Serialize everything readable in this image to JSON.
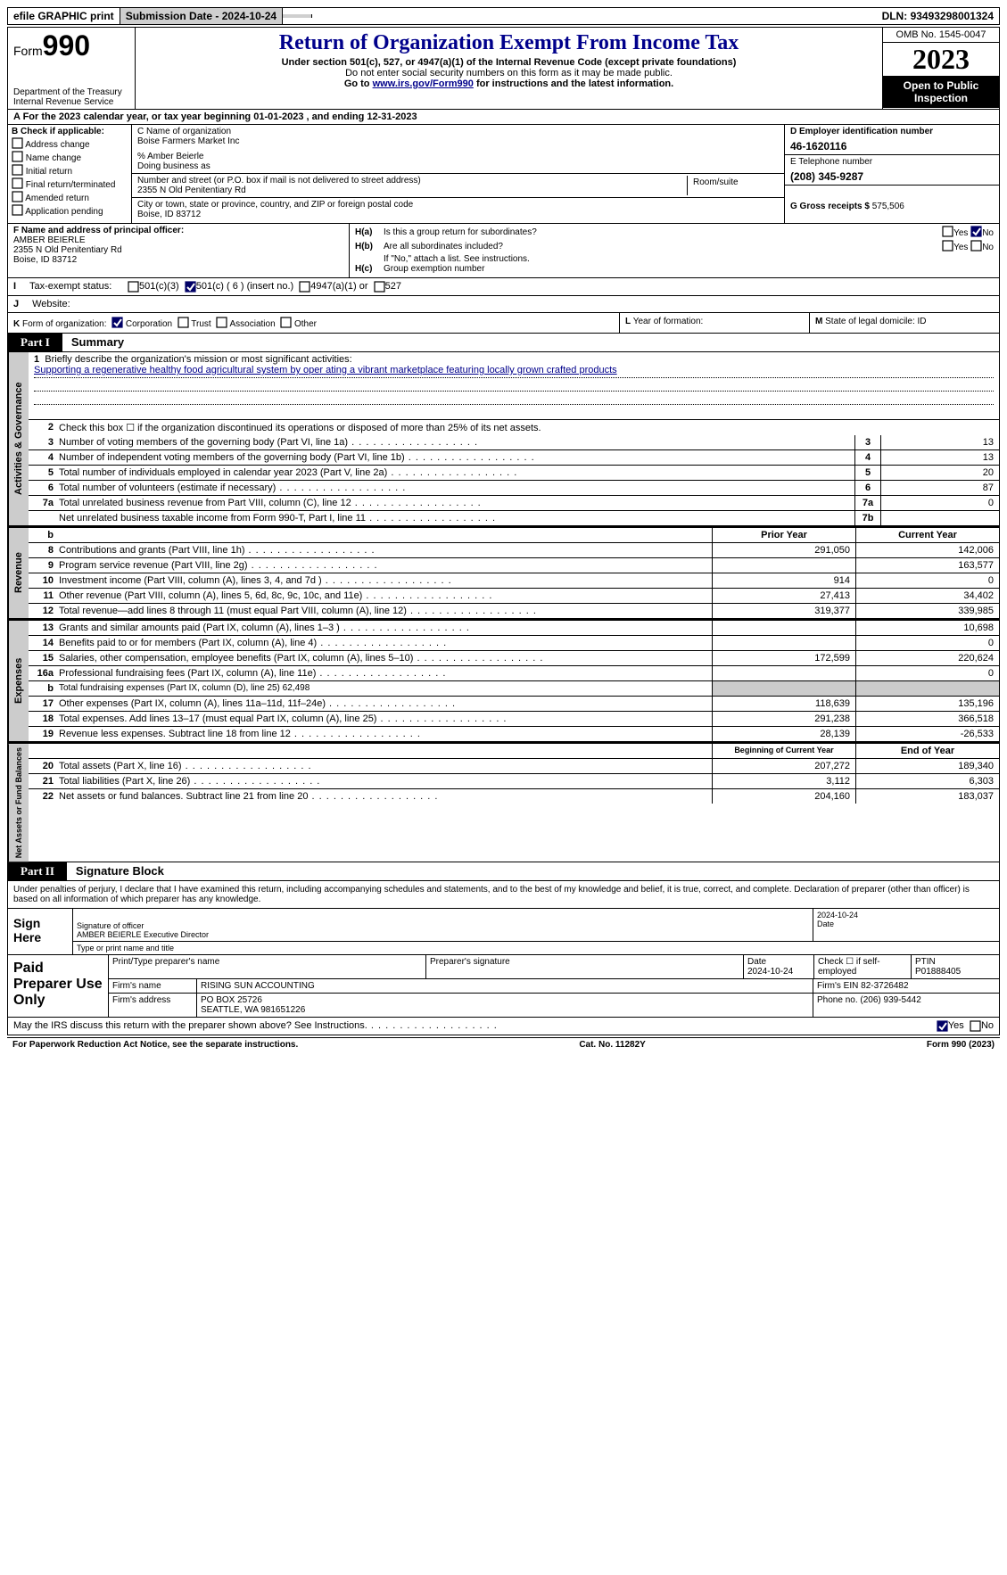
{
  "topbar": {
    "efile": "efile GRAPHIC print",
    "sub_label": "Submission Date - ",
    "sub_date": "2024-10-24",
    "dln_label": "DLN: ",
    "dln": "93493298001324"
  },
  "header": {
    "form_label": "Form",
    "form_no": "990",
    "dept": "Department of the Treasury Internal Revenue Service",
    "title": "Return of Organization Exempt From Income Tax",
    "subtitle": "Under section 501(c), 527, or 4947(a)(1) of the Internal Revenue Code (except private foundations)",
    "note1": "Do not enter social security numbers on this form as it may be made public.",
    "note2_pre": "Go to ",
    "note2_link": "www.irs.gov/Form990",
    "note2_post": " for instructions and the latest information.",
    "omb": "OMB No. 1545-0047",
    "year": "2023",
    "inspection": "Open to Public Inspection"
  },
  "row_a": {
    "text_pre": "A    For the 2023 calendar year, or tax year beginning ",
    "begin": "01-01-2023",
    "mid": "   , and ending ",
    "end": "12-31-2023"
  },
  "box_b": {
    "title": "B Check if applicable:",
    "items": [
      "Address change",
      "Name change",
      "Initial return",
      "Final return/terminated",
      "Amended return",
      "Application pending"
    ]
  },
  "box_c": {
    "name_label": "C Name of organization",
    "name": "Boise Farmers Market Inc",
    "care_of": "% Amber Beierle",
    "dba_label": "Doing business as",
    "dba": "",
    "street_label": "Number and street (or P.O. box if mail is not delivered to street address)",
    "street": "2355 N Old Penitentiary Rd",
    "room_label": "Room/suite",
    "room": "",
    "city_label": "City or town, state or province, country, and ZIP or foreign postal code",
    "city": "Boise, ID  83712"
  },
  "box_d": {
    "label": "D Employer identification number",
    "value": "46-1620116"
  },
  "box_e": {
    "label": "E Telephone number",
    "value": "(208) 345-9287"
  },
  "box_g": {
    "label": "G Gross receipts $ ",
    "value": "575,506"
  },
  "box_f": {
    "label": "F  Name and address of principal officer:",
    "name": "AMBER BEIERLE",
    "street": "2355 N Old Penitentiary Rd",
    "city": "Boise, ID  83712"
  },
  "box_h": {
    "a_label": "H(a)",
    "a_text": "Is this a group return for subordinates?",
    "b_label": "H(b)",
    "b_text": "Are all subordinates included?",
    "b_note": "If \"No,\" attach a list. See instructions.",
    "c_label": "H(c)",
    "c_text": "Group exemption number",
    "yes": "Yes",
    "no": "No"
  },
  "box_i": {
    "label": "I",
    "text": "Tax-exempt status:",
    "opts": [
      "501(c)(3)",
      "501(c) ( 6 ) (insert no.)",
      "4947(a)(1) or",
      "527"
    ]
  },
  "box_j": {
    "label": "J",
    "text": "Website:"
  },
  "box_k": {
    "label": "K",
    "text": "Form of organization:",
    "opts": [
      "Corporation",
      "Trust",
      "Association",
      "Other"
    ]
  },
  "box_l": {
    "label": "L",
    "text": "Year of formation:"
  },
  "box_m": {
    "label": "M",
    "text": "State of legal domicile: ",
    "value": "ID"
  },
  "part1": {
    "tab": "Part I",
    "title": "Summary"
  },
  "mission": {
    "num": "1",
    "label": "Briefly describe the organization's mission or most significant activities:",
    "text": "Supporting a regenerative healthy food agricultural system by oper ating a vibrant marketplace featuring locally grown crafted products"
  },
  "gov_section": {
    "vtab": "Activities & Governance",
    "rows": [
      {
        "num": "2",
        "desc": "Check this box ☐ if the organization discontinued its operations or disposed of more than 25% of its net assets."
      },
      {
        "num": "3",
        "desc": "Number of voting members of the governing body (Part VI, line 1a)",
        "box": "3",
        "val": "13"
      },
      {
        "num": "4",
        "desc": "Number of independent voting members of the governing body (Part VI, line 1b)",
        "box": "4",
        "val": "13"
      },
      {
        "num": "5",
        "desc": "Total number of individuals employed in calendar year 2023 (Part V, line 2a)",
        "box": "5",
        "val": "20"
      },
      {
        "num": "6",
        "desc": "Total number of volunteers (estimate if necessary)",
        "box": "6",
        "val": "87"
      },
      {
        "num": "7a",
        "desc": "Total unrelated business revenue from Part VIII, column (C), line 12",
        "box": "7a",
        "val": "0"
      },
      {
        "num": "",
        "desc": "Net unrelated business taxable income from Form 990-T, Part I, line 11",
        "box": "7b",
        "val": ""
      }
    ]
  },
  "rev_section": {
    "vtab": "Revenue",
    "header_b": "b",
    "col1": "Prior Year",
    "col2": "Current Year",
    "rows": [
      {
        "num": "8",
        "desc": "Contributions and grants (Part VIII, line 1h)",
        "v1": "291,050",
        "v2": "142,006"
      },
      {
        "num": "9",
        "desc": "Program service revenue (Part VIII, line 2g)",
        "v1": "",
        "v2": "163,577"
      },
      {
        "num": "10",
        "desc": "Investment income (Part VIII, column (A), lines 3, 4, and 7d )",
        "v1": "914",
        "v2": "0"
      },
      {
        "num": "11",
        "desc": "Other revenue (Part VIII, column (A), lines 5, 6d, 8c, 9c, 10c, and 11e)",
        "v1": "27,413",
        "v2": "34,402"
      },
      {
        "num": "12",
        "desc": "Total revenue—add lines 8 through 11 (must equal Part VIII, column (A), line 12)",
        "v1": "319,377",
        "v2": "339,985"
      }
    ]
  },
  "exp_section": {
    "vtab": "Expenses",
    "rows": [
      {
        "num": "13",
        "desc": "Grants and similar amounts paid (Part IX, column (A), lines 1–3 )",
        "v1": "",
        "v2": "10,698"
      },
      {
        "num": "14",
        "desc": "Benefits paid to or for members (Part IX, column (A), line 4)",
        "v1": "",
        "v2": "0"
      },
      {
        "num": "15",
        "desc": "Salaries, other compensation, employee benefits (Part IX, column (A), lines 5–10)",
        "v1": "172,599",
        "v2": "220,624"
      },
      {
        "num": "16a",
        "desc": "Professional fundraising fees (Part IX, column (A), line 11e)",
        "v1": "",
        "v2": "0"
      },
      {
        "num": "b",
        "desc": "Total fundraising expenses (Part IX, column (D), line 25) 62,498",
        "grey": true
      },
      {
        "num": "17",
        "desc": "Other expenses (Part IX, column (A), lines 11a–11d, 11f–24e)",
        "v1": "118,639",
        "v2": "135,196"
      },
      {
        "num": "18",
        "desc": "Total expenses. Add lines 13–17 (must equal Part IX, column (A), line 25)",
        "v1": "291,238",
        "v2": "366,518"
      },
      {
        "num": "19",
        "desc": "Revenue less expenses. Subtract line 18 from line 12",
        "v1": "28,139",
        "v2": "-26,533"
      }
    ]
  },
  "net_section": {
    "vtab": "Net Assets or Fund Balances",
    "col1": "Beginning of Current Year",
    "col2": "End of Year",
    "rows": [
      {
        "num": "20",
        "desc": "Total assets (Part X, line 16)",
        "v1": "207,272",
        "v2": "189,340"
      },
      {
        "num": "21",
        "desc": "Total liabilities (Part X, line 26)",
        "v1": "3,112",
        "v2": "6,303"
      },
      {
        "num": "22",
        "desc": "Net assets or fund balances. Subtract line 21 from line 20",
        "v1": "204,160",
        "v2": "183,037"
      }
    ]
  },
  "part2": {
    "tab": "Part II",
    "title": "Signature Block"
  },
  "sig": {
    "declaration": "Under penalties of perjury, I declare that I have examined this return, including accompanying schedules and statements, and to the best of my knowledge and belief, it is true, correct, and complete. Declaration of preparer (other than officer) is based on all information of which preparer has any knowledge.",
    "sign_here": "Sign Here",
    "date": "2024-10-24",
    "sig_label": "Signature of officer",
    "officer": "AMBER BEIERLE  Executive Director",
    "name_label": "Type or print name and title",
    "date_label": "Date"
  },
  "prep": {
    "title": "Paid Preparer Use Only",
    "h1": "Print/Type preparer's name",
    "h2": "Preparer's signature",
    "h3": "Date",
    "h3v": "2024-10-24",
    "h4": "Check ☐ if self-employed",
    "h5": "PTIN",
    "h5v": "P01888405",
    "firm_label": "Firm's name",
    "firm": "RISING SUN ACCOUNTING",
    "ein_label": "Firm's EIN",
    "ein": "82-3726482",
    "addr_label": "Firm's address",
    "addr1": "PO BOX 25726",
    "addr2": "SEATTLE, WA  981651226",
    "phone_label": "Phone no.",
    "phone": "(206) 939-5442"
  },
  "discuss": {
    "text": "May the IRS discuss this return with the preparer shown above? See Instructions.",
    "yes": "Yes",
    "no": "No"
  },
  "footer": {
    "left": "For Paperwork Reduction Act Notice, see the separate instructions.",
    "mid": "Cat. No. 11282Y",
    "right_pre": "Form ",
    "right_form": "990",
    "right_post": " (2023)"
  },
  "colors": {
    "header_blue": "#00008b",
    "grey": "#cccccc",
    "black": "#000000"
  }
}
